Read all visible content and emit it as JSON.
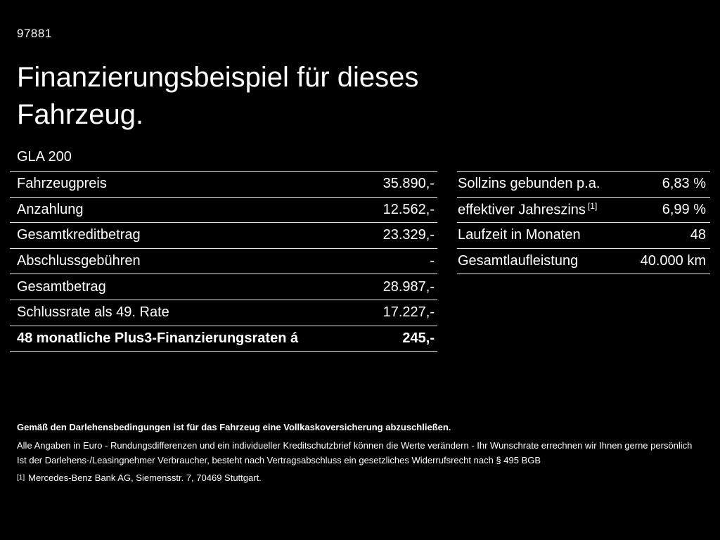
{
  "header": {
    "doc_id": "97881",
    "title_lines": [
      "Finanzierungsbeispiel für dieses",
      "Fahrzeug."
    ],
    "model": "GLA 200"
  },
  "left_table": {
    "rows": [
      {
        "label": "Fahrzeugpreis",
        "value": "35.890,-"
      },
      {
        "label": "Anzahlung",
        "value": "12.562,-"
      },
      {
        "label": "Gesamtkreditbetrag",
        "value": "23.329,-"
      },
      {
        "label": "Abschlussgebühren",
        "value": "-"
      },
      {
        "label": "Gesamtbetrag",
        "value": "28.987,-"
      },
      {
        "label": "Schlussrate als 49. Rate",
        "value": "17.227,-"
      },
      {
        "label": "48 monatliche Plus3-Finanzierungsraten á",
        "value": "245,-"
      }
    ]
  },
  "right_table": {
    "rows": [
      {
        "label": "Sollzins gebunden p.a.",
        "value": "6,83 %"
      },
      {
        "label": "effektiver Jahreszins",
        "sup": "[1]",
        "value": "6,99 %"
      },
      {
        "label": "Laufzeit in Monaten",
        "value": "48"
      },
      {
        "label": "Gesamtlaufleistung",
        "value": "40.000 km"
      }
    ]
  },
  "footer": {
    "line1": "Gemäß den Darlehensbedingungen ist für das Fahrzeug eine Vollkaskoversicherung abzuschließen.",
    "line2": "Alle Angaben in Euro - Rundungsdifferenzen und ein individueller Kreditschutzbrief können die Werte verändern - Ihr Wunschrate errechnen wir Ihnen gerne persönlich",
    "line3": "Ist der Darlehens-/Leasingnehmer Verbraucher, besteht nach Vertragsabschluss ein gesetzliches Widerrufsrecht nach § 495 BGB",
    "footnote_marker": "[1]",
    "footnote_text": "Mercedes-Benz Bank AG, Siemensstr. 7, 70469 Stuttgart."
  }
}
